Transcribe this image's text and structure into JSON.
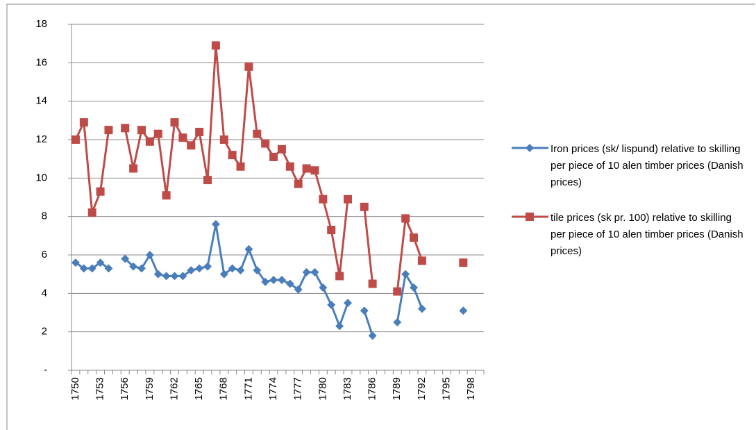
{
  "chart_data": {
    "type": "line",
    "categories": [
      "1750",
      null,
      null,
      "1753",
      null,
      null,
      "1756",
      null,
      null,
      "1759",
      null,
      null,
      "1762",
      null,
      null,
      "1765",
      null,
      null,
      "1768",
      null,
      null,
      "1771",
      null,
      null,
      "1774",
      null,
      null,
      "1777",
      null,
      null,
      "1780",
      null,
      null,
      "1783",
      null,
      null,
      "1786",
      null,
      null,
      "1789",
      null,
      null,
      "1792",
      null,
      null,
      "1795",
      null,
      null,
      "1798",
      null
    ],
    "series": [
      {
        "name": "Iron prices (sk/ lispund) relative to skilling per piece of 10 alen timber prices (Danish prices)",
        "color": "#4a7ebb",
        "marker": "diamond",
        "values": [
          5.6,
          5.3,
          5.3,
          5.6,
          5.3,
          null,
          5.8,
          5.4,
          5.3,
          6.0,
          5.0,
          4.9,
          4.9,
          4.9,
          5.2,
          5.3,
          5.4,
          7.6,
          5.0,
          5.3,
          5.2,
          6.3,
          5.2,
          4.6,
          4.7,
          4.7,
          4.5,
          4.2,
          5.1,
          5.1,
          4.3,
          3.4,
          2.3,
          3.5,
          null,
          3.1,
          1.8,
          null,
          null,
          2.5,
          5.0,
          4.3,
          3.2,
          null,
          null,
          null,
          null,
          3.1,
          null,
          null
        ]
      },
      {
        "name": "tile prices (sk pr. 100) relative to skilling per piece of 10 alen timber prices (Danish prices)",
        "color": "#be4b48",
        "marker": "square",
        "values": [
          12.0,
          12.9,
          8.2,
          9.3,
          12.5,
          null,
          12.6,
          10.5,
          12.5,
          11.9,
          12.3,
          9.1,
          12.9,
          12.1,
          11.7,
          12.4,
          9.9,
          16.9,
          12.0,
          11.2,
          10.6,
          15.8,
          12.3,
          11.8,
          11.1,
          11.5,
          10.6,
          9.7,
          10.5,
          10.4,
          8.9,
          7.3,
          4.9,
          8.9,
          null,
          8.5,
          4.5,
          null,
          null,
          4.1,
          7.9,
          6.9,
          5.7,
          null,
          null,
          null,
          null,
          5.6,
          null,
          null
        ]
      }
    ],
    "ylim": [
      0,
      18
    ],
    "yticks": [
      {
        "value": 0,
        "label": "-"
      },
      2,
      4,
      6,
      8,
      10,
      12,
      14,
      16,
      18
    ],
    "grid": true,
    "legend": "right"
  }
}
